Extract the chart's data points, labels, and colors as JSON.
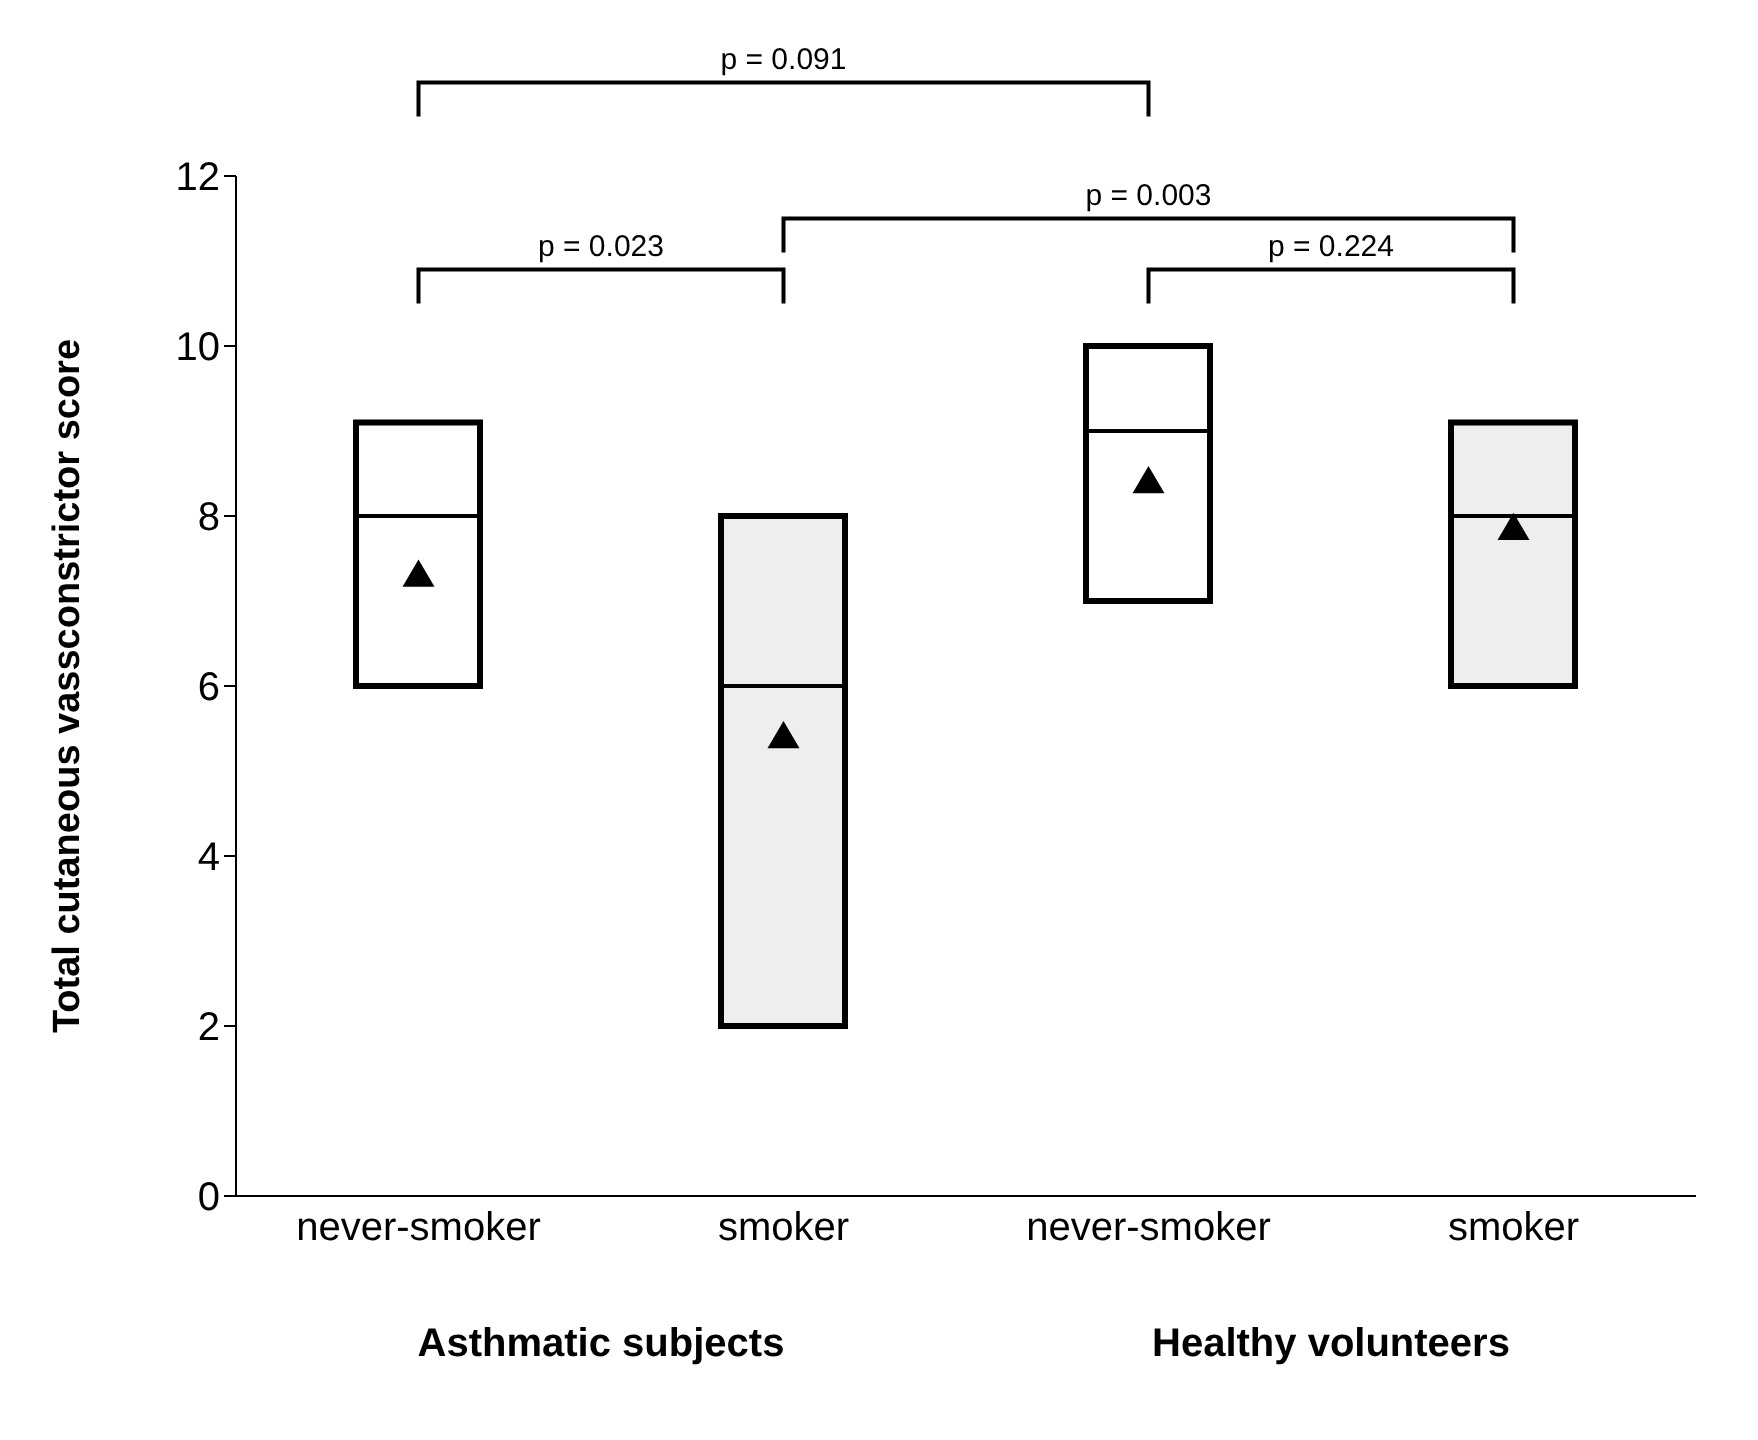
{
  "chart_data": {
    "type": "box",
    "ylabel": "Total cutaneous vassconstrictor score",
    "categories": [
      "never-smoker",
      "smoker",
      "never-smoker",
      "smoker"
    ],
    "boxes": [
      {
        "low": 6,
        "q1": 6,
        "median": 8,
        "q3": 9.1,
        "high": 9.1,
        "mean": 7.3
      },
      {
        "low": 2,
        "q1": 2,
        "median": 6,
        "q3": 8,
        "high": 8,
        "mean": 5.4
      },
      {
        "low": 7,
        "q1": 7,
        "median": 9,
        "q3": 10,
        "high": 10,
        "mean": 8.4
      },
      {
        "low": 6,
        "q1": 6,
        "median": 8,
        "q3": 9.1,
        "high": 9.1,
        "mean": 7.85
      }
    ],
    "colors": [
      "#ffffff",
      "#eeeeee",
      "#ffffff",
      "#eeeeee"
    ],
    "marker": "triangle",
    "ylim": [
      0,
      12
    ],
    "yticks": [
      0,
      2,
      4,
      6,
      8,
      10,
      12
    ],
    "grid": false,
    "annotations": [
      "p = 0.091",
      "p = 0.023",
      "p = 0.003",
      "p = 0.224",
      "Asthmatic subjects",
      "Healthy volunteers"
    ]
  }
}
